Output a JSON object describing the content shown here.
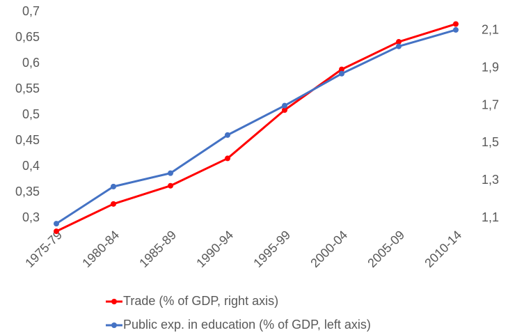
{
  "chart_data": {
    "type": "line",
    "categories": [
      "1975-79",
      "1980-84",
      "1985-89",
      "1990-94",
      "1995-99",
      "2000-04",
      "2005-09",
      "2010-14"
    ],
    "series": [
      {
        "name": "Trade (% of GDP, right axis)",
        "color": "#ff0000",
        "axis": "y2",
        "values": [
          1.029,
          1.175,
          1.272,
          1.418,
          1.676,
          1.893,
          2.04,
          2.135
        ]
      },
      {
        "name": "Public exp. in education (% of GDP, left axis)",
        "color": "#4472c4",
        "values": [
          0.289,
          0.361,
          0.387,
          0.461,
          0.518,
          0.58,
          0.633,
          0.665
        ]
      }
    ],
    "ylim": [
      0.3,
      0.7
    ],
    "yticks": [
      {
        "value": 0.3,
        "label": "0,3"
      },
      {
        "value": 0.35,
        "label": "0,35"
      },
      {
        "value": 0.4,
        "label": "0,4"
      },
      {
        "value": 0.45,
        "label": "0,45"
      },
      {
        "value": 0.5,
        "label": "0,5"
      },
      {
        "value": 0.55,
        "label": "0,55"
      },
      {
        "value": 0.6,
        "label": "0,6"
      },
      {
        "value": 0.65,
        "label": "0,65"
      },
      {
        "value": 0.7,
        "label": "0,7"
      }
    ],
    "y2lim": [
      1.1,
      2.2
    ],
    "y2ticks": [
      {
        "value": 1.1,
        "label": "1,1"
      },
      {
        "value": 1.3,
        "label": "1,3"
      },
      {
        "value": 1.5,
        "label": "1,5"
      },
      {
        "value": 1.7,
        "label": "1,7"
      },
      {
        "value": 1.9,
        "label": "1,9"
      },
      {
        "value": 2.1,
        "label": "2,1"
      }
    ],
    "grid": false
  }
}
